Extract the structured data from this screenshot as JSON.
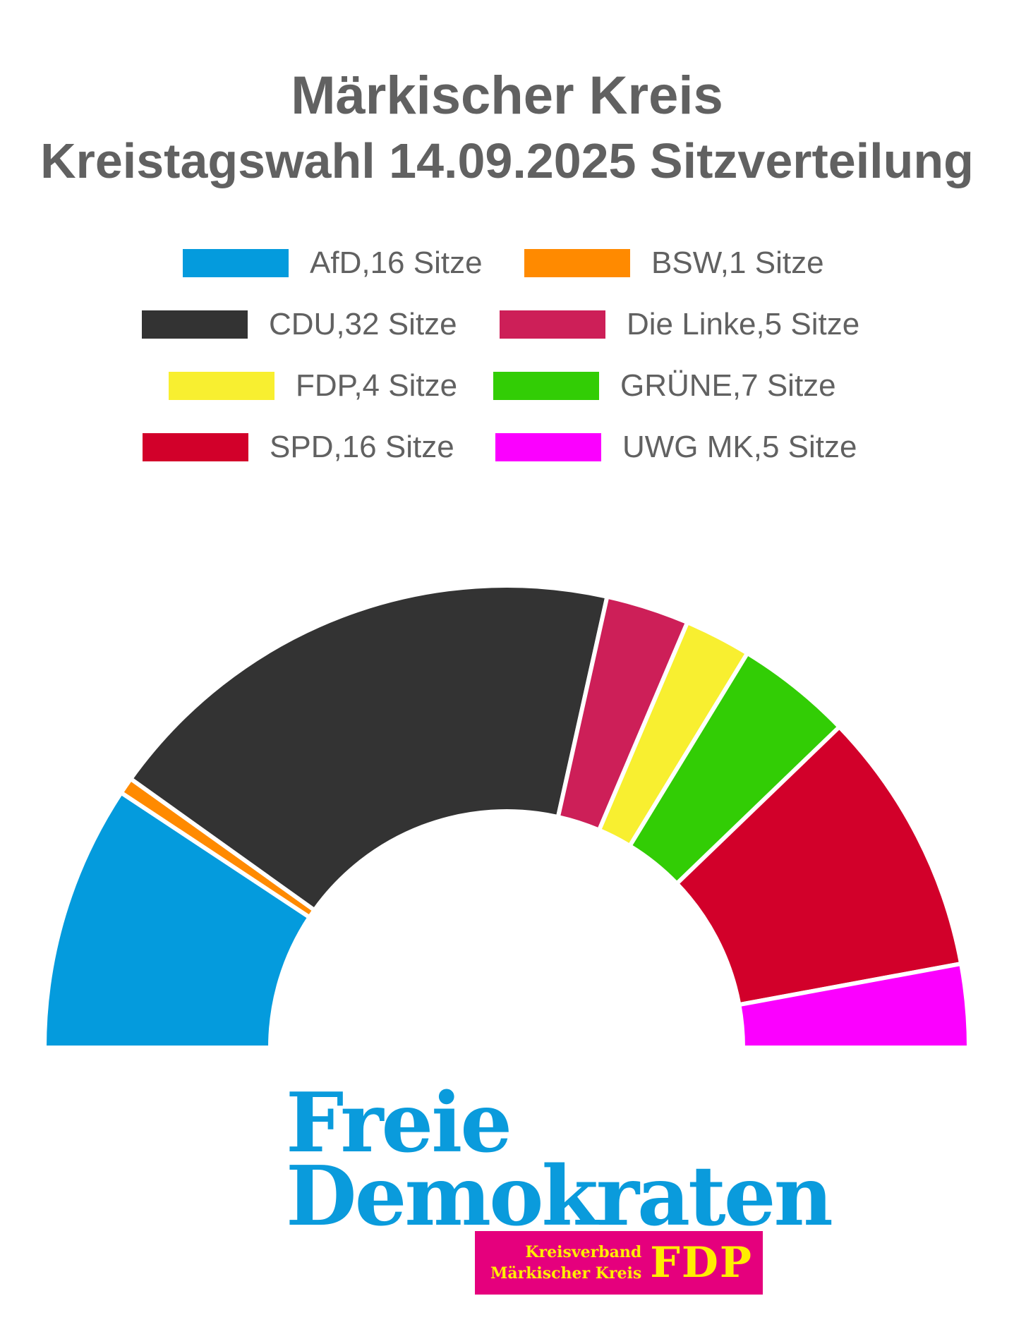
{
  "header": {
    "title": "Märkischer Kreis",
    "subtitle": "Kreistagswahl 14.09.2025 Sitzverteilung"
  },
  "chart_data": {
    "type": "pie",
    "variant": "half-donut",
    "title": "Märkischer Kreis",
    "subtitle": "Kreistagswahl 14.09.2025 Sitzverteilung",
    "legend_position": "top",
    "series": [
      {
        "name": "AfD",
        "label": "AfD,16 Sitze",
        "value": 16,
        "color": "#049bdd"
      },
      {
        "name": "BSW",
        "label": "BSW,1 Sitze",
        "value": 1,
        "color": "#ff8a00"
      },
      {
        "name": "CDU",
        "label": "CDU,32 Sitze",
        "value": 32,
        "color": "#333333"
      },
      {
        "name": "Die Linke",
        "label": "Die Linke,5 Sitze",
        "value": 5,
        "color": "#cd1f58"
      },
      {
        "name": "FDP",
        "label": "FDP,4 Sitze",
        "value": 4,
        "color": "#f8ef30"
      },
      {
        "name": "GRÜNE",
        "label": "GRÜNE,7 Sitze",
        "value": 7,
        "color": "#32cd05"
      },
      {
        "name": "SPD",
        "label": "SPD,16 Sitze",
        "value": 16,
        "color": "#d2002a"
      },
      {
        "name": "UWG MK",
        "label": "UWG MK,5 Sitze",
        "value": 5,
        "color": "#fb00ff"
      }
    ]
  },
  "logo": {
    "line1": "Freie",
    "line2": "Demokraten",
    "badge_line1": "Kreisverband",
    "badge_line2": "Märkischer Kreis",
    "badge_brand": "FDP",
    "brand_color": "#0a9bdc",
    "badge_color": "#e5007d",
    "badge_text_color": "#ffed00"
  }
}
